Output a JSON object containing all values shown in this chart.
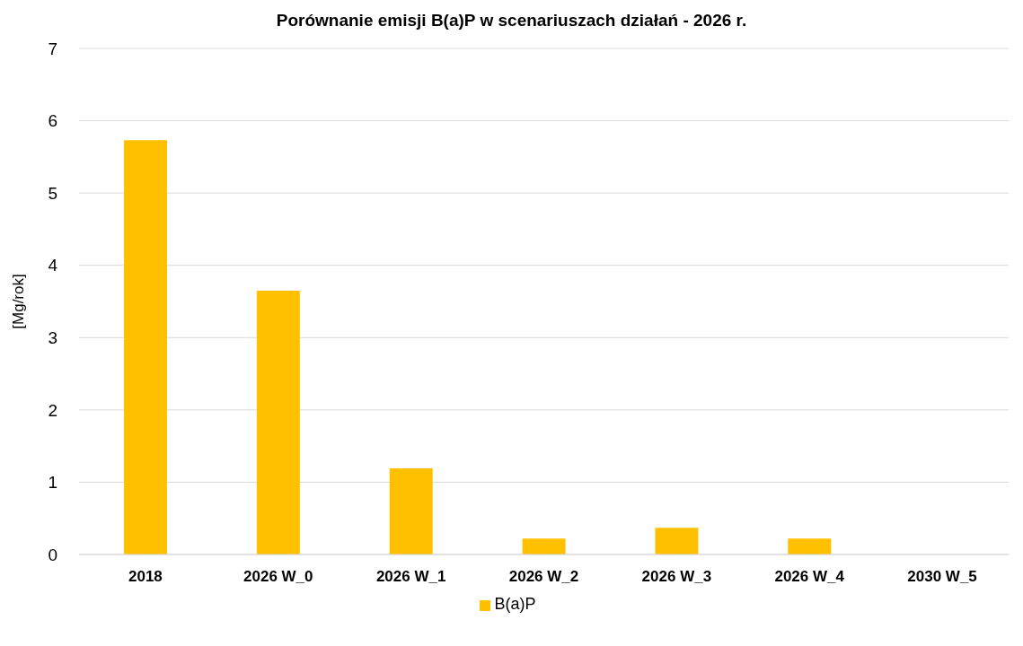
{
  "chart_data": {
    "type": "bar",
    "title": "Porównanie emisji B(a)P w scenariuszach działań - 2026 r.",
    "ylabel": "[Mg/rok]",
    "categories": [
      "2018",
      "2026 W_0",
      "2026 W_1",
      "2026 W_2",
      "2026 W_3",
      "2026 W_4",
      "2030 W_5"
    ],
    "series": [
      {
        "name": "B(a)P",
        "color": "#ffc000",
        "values": [
          5.73,
          3.65,
          1.19,
          0.22,
          0.37,
          0.22,
          0
        ]
      }
    ],
    "ylim": [
      0,
      7
    ],
    "yticks": [
      0,
      1,
      2,
      3,
      4,
      5,
      6,
      7
    ],
    "grid": "y",
    "legend": "bottom"
  }
}
